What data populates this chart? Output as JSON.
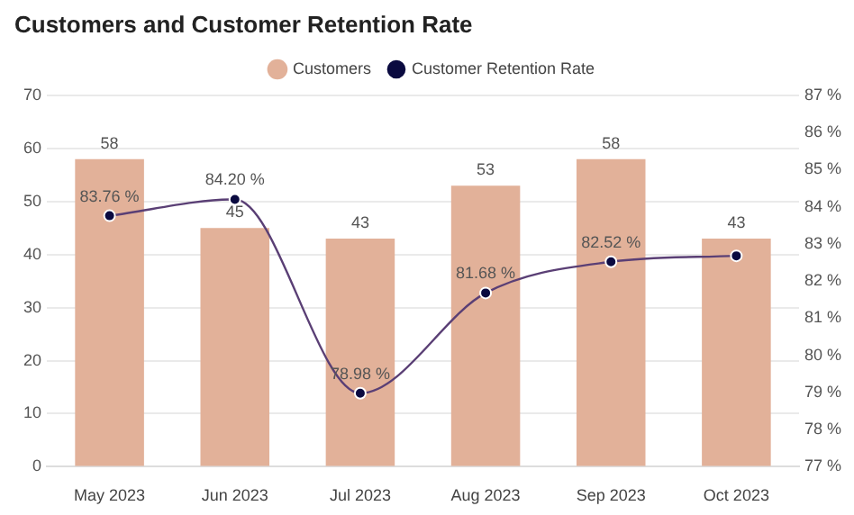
{
  "chart_data": {
    "type": "bar",
    "title": "Customers and Customer Retention Rate",
    "categories": [
      "May 2023",
      "Jun 2023",
      "Jul 2023",
      "Aug 2023",
      "Sep 2023",
      "Oct 2023"
    ],
    "series": [
      {
        "name": "Customers",
        "color": "#e2b199",
        "values": [
          58,
          45,
          43,
          53,
          58,
          43
        ],
        "value_labels": [
          "58",
          "45",
          "43",
          "53",
          "58",
          "43"
        ]
      },
      {
        "name": "Customer Retention Rate",
        "type": "line",
        "axis": "y2",
        "color": "#5a3f75",
        "marker": "circle",
        "values": [
          83.76,
          84.2,
          78.98,
          81.68,
          82.52,
          82.68
        ],
        "value_labels": [
          "83.76 %",
          "84.20 %",
          "78.98 %",
          "81.68 %",
          "82.52 %",
          null
        ]
      }
    ],
    "ylim": [
      0,
      70
    ],
    "yticks": [
      0,
      10,
      20,
      30,
      40,
      50,
      60,
      70
    ],
    "y2lim": [
      77,
      87
    ],
    "y2ticks": [
      {
        "value": 77,
        "label": "77 %"
      },
      {
        "value": 78,
        "label": "78 %"
      },
      {
        "value": 79,
        "label": "79 %"
      },
      {
        "value": 80,
        "label": "80 %"
      },
      {
        "value": 81,
        "label": "81 %"
      },
      {
        "value": 82,
        "label": "82 %"
      },
      {
        "value": 83,
        "label": "83 %"
      },
      {
        "value": 84,
        "label": "84 %"
      },
      {
        "value": 85,
        "label": "85 %"
      },
      {
        "value": 86,
        "label": "86 %"
      },
      {
        "value": 87,
        "label": "87 %"
      }
    ],
    "grid": "y",
    "legend": "top"
  }
}
